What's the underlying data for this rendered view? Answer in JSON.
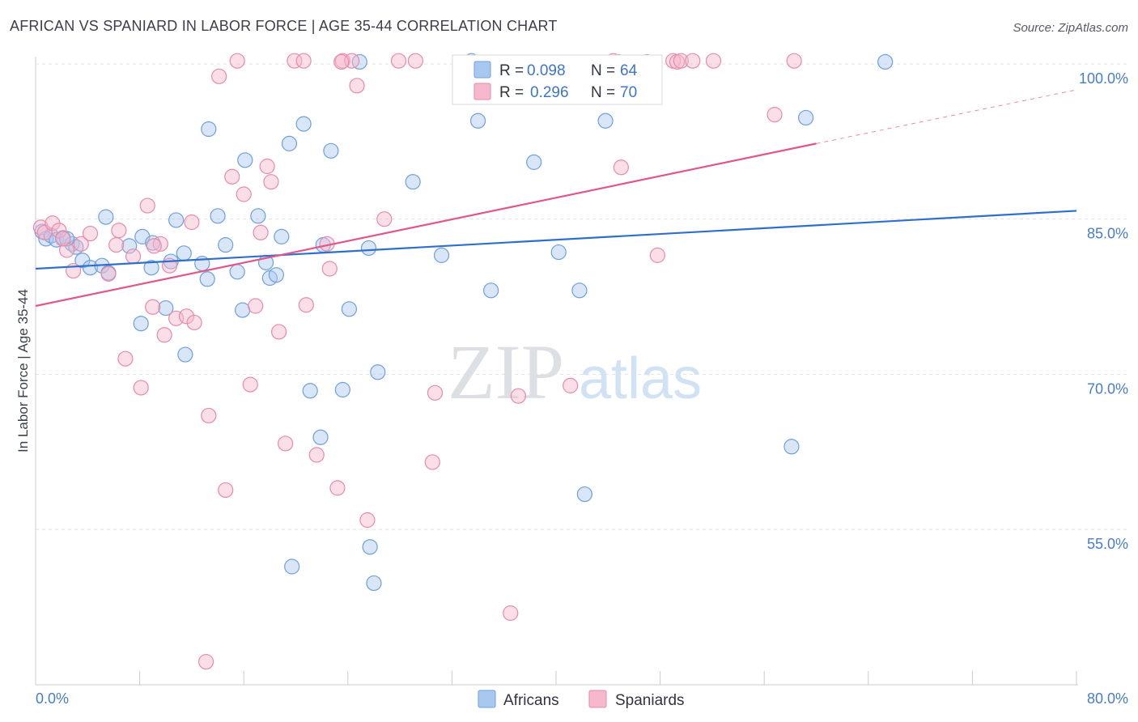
{
  "chart_data": {
    "type": "scatter",
    "title": "AFRICAN VS SPANIARD IN LABOR FORCE | AGE 35-44 CORRELATION CHART",
    "source": "Source: ZipAtlas.com",
    "xlabel": "",
    "ylabel": "In Labor Force | Age 35-44",
    "xlim": [
      0,
      80
    ],
    "ylim": [
      40,
      103
    ],
    "x_tick_labels": [
      "0.0%",
      "80.0%"
    ],
    "y_ticks": [
      55,
      70,
      85,
      100
    ],
    "y_tick_labels": [
      "55.0%",
      "70.0%",
      "85.0%",
      "100.0%"
    ],
    "watermark": {
      "part1": "ZIP",
      "part2": "atlas"
    },
    "legend": {
      "r_label": "R =",
      "n_label": "N =",
      "entries": [
        {
          "name": "Africans",
          "r": "0.098",
          "n": "64"
        },
        {
          "name": "Spaniards",
          "r": "0.296",
          "n": "70"
        }
      ]
    },
    "colors": {
      "africans_fill": "#a9c8f0",
      "africans_stroke": "#6f9fdc",
      "africans_line": "#2f6fcc",
      "spaniards_fill": "#f6b8cc",
      "spaniards_stroke": "#e88aa8",
      "spaniards_line": "#e0588a"
    },
    "series": [
      {
        "name": "Africans",
        "trend": {
          "x0": 0,
          "y0": 80.2,
          "x1": 80,
          "y1": 85.8
        },
        "points": [
          [
            0.5,
            83.8
          ],
          [
            0.8,
            83.1
          ],
          [
            1.2,
            83.4
          ],
          [
            1.6,
            83.0
          ],
          [
            2.1,
            83.2
          ],
          [
            2.8,
            82.6
          ],
          [
            3.1,
            82.3
          ],
          [
            3.6,
            81.0
          ],
          [
            4.2,
            80.3
          ],
          [
            5.1,
            80.5
          ],
          [
            5.4,
            85.2
          ],
          [
            7.2,
            82.4
          ],
          [
            8.2,
            83.3
          ],
          [
            9.0,
            82.7
          ],
          [
            8.9,
            80.3
          ],
          [
            10.4,
            80.9
          ],
          [
            11.4,
            81.7
          ],
          [
            10.8,
            84.9
          ],
          [
            12.8,
            80.7
          ],
          [
            13.2,
            79.2
          ],
          [
            14.0,
            85.3
          ],
          [
            14.6,
            82.5
          ],
          [
            15.5,
            79.9
          ],
          [
            15.9,
            76.2
          ],
          [
            16.1,
            90.7
          ],
          [
            17.1,
            85.3
          ],
          [
            17.7,
            80.8
          ],
          [
            18.0,
            79.3
          ],
          [
            18.5,
            79.6
          ],
          [
            18.9,
            83.3
          ],
          [
            19.5,
            92.3
          ],
          [
            20.6,
            94.2
          ],
          [
            21.1,
            68.4
          ],
          [
            21.9,
            63.9
          ],
          [
            22.1,
            82.5
          ],
          [
            22.7,
            91.6
          ],
          [
            23.6,
            68.5
          ],
          [
            24.1,
            76.3
          ],
          [
            24.9,
            100.2
          ],
          [
            25.6,
            82.2
          ],
          [
            25.7,
            53.3
          ],
          [
            26.3,
            70.2
          ],
          [
            26.0,
            49.8
          ],
          [
            29.0,
            88.6
          ],
          [
            31.2,
            81.5
          ],
          [
            33.5,
            100.3
          ],
          [
            34.0,
            94.5
          ],
          [
            35.0,
            78.1
          ],
          [
            38.3,
            90.5
          ],
          [
            40.2,
            81.8
          ],
          [
            41.8,
            78.1
          ],
          [
            42.2,
            58.4
          ],
          [
            43.8,
            94.5
          ],
          [
            47.0,
            100.2
          ],
          [
            58.1,
            63.0
          ],
          [
            59.2,
            94.8
          ],
          [
            65.3,
            100.2
          ],
          [
            19.7,
            51.4
          ],
          [
            13.3,
            93.7
          ],
          [
            11.5,
            71.9
          ],
          [
            8.1,
            74.9
          ],
          [
            10.0,
            76.4
          ],
          [
            5.6,
            79.8
          ],
          [
            2.4,
            83.1
          ]
        ]
      },
      {
        "name": "Spaniards",
        "trend": {
          "x0": 0,
          "y0": 76.6,
          "x1": 60,
          "y1": 92.3,
          "dash_to_x": 80,
          "dash_to_y": 97.5
        },
        "points": [
          [
            0.4,
            84.2
          ],
          [
            0.7,
            83.7
          ],
          [
            1.3,
            84.6
          ],
          [
            1.8,
            83.9
          ],
          [
            2.4,
            82.0
          ],
          [
            2.9,
            80.0
          ],
          [
            3.5,
            82.6
          ],
          [
            4.2,
            83.6
          ],
          [
            5.6,
            79.7
          ],
          [
            6.2,
            82.5
          ],
          [
            6.4,
            83.9
          ],
          [
            6.9,
            71.5
          ],
          [
            7.5,
            81.4
          ],
          [
            8.1,
            68.7
          ],
          [
            8.6,
            86.3
          ],
          [
            9.0,
            76.5
          ],
          [
            9.6,
            82.6
          ],
          [
            9.9,
            73.8
          ],
          [
            10.3,
            80.5
          ],
          [
            10.8,
            75.4
          ],
          [
            11.6,
            75.6
          ],
          [
            12.0,
            84.7
          ],
          [
            12.2,
            75.0
          ],
          [
            13.1,
            42.2
          ],
          [
            13.3,
            66.0
          ],
          [
            14.1,
            98.8
          ],
          [
            14.6,
            58.8
          ],
          [
            15.1,
            89.1
          ],
          [
            15.5,
            100.3
          ],
          [
            16.0,
            87.4
          ],
          [
            16.5,
            69.0
          ],
          [
            16.9,
            76.6
          ],
          [
            17.3,
            83.7
          ],
          [
            17.8,
            90.1
          ],
          [
            18.1,
            88.6
          ],
          [
            18.7,
            74.1
          ],
          [
            19.2,
            63.3
          ],
          [
            19.9,
            100.3
          ],
          [
            20.6,
            100.3
          ],
          [
            20.8,
            76.7
          ],
          [
            21.6,
            62.2
          ],
          [
            22.4,
            82.6
          ],
          [
            22.6,
            80.2
          ],
          [
            23.2,
            59.0
          ],
          [
            23.6,
            100.3
          ],
          [
            24.3,
            100.3
          ],
          [
            24.7,
            97.9
          ],
          [
            25.5,
            55.9
          ],
          [
            26.8,
            85.0
          ],
          [
            29.2,
            100.3
          ],
          [
            30.5,
            61.5
          ],
          [
            30.7,
            68.2
          ],
          [
            37.1,
            67.9
          ],
          [
            41.1,
            68.9
          ],
          [
            44.4,
            100.3
          ],
          [
            44.8,
            100.2
          ],
          [
            45.0,
            90.0
          ],
          [
            47.8,
            81.5
          ],
          [
            49.0,
            100.3
          ],
          [
            49.3,
            100.2
          ],
          [
            49.6,
            100.3
          ],
          [
            50.5,
            100.3
          ],
          [
            52.1,
            100.3
          ],
          [
            56.8,
            95.1
          ],
          [
            58.3,
            100.3
          ],
          [
            36.5,
            46.9
          ],
          [
            23.5,
            100.2
          ],
          [
            27.9,
            100.3
          ],
          [
            2.1,
            83.1
          ],
          [
            9.1,
            82.4
          ]
        ]
      }
    ]
  }
}
